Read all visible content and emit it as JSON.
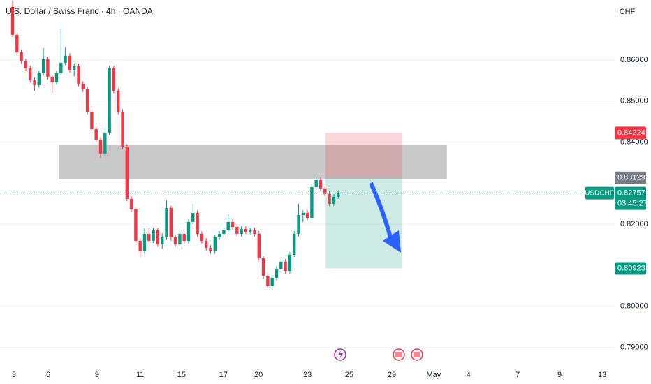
{
  "chart_data": {
    "type": "candlestick",
    "title": "U.S. Dollar / Swiss Franc · 4h · OANDA",
    "currency": "CHF",
    "symbol": "USDCHF",
    "countdown": "03:45:27",
    "up_color": "#089981",
    "down_color": "#f23645",
    "open": [
      0.87293,
      0.86612,
      0.86187,
      0.85966,
      0.85796,
      0.85507,
      0.85388,
      0.85677,
      0.86017,
      0.85592,
      0.85456,
      0.85677,
      0.85932,
      0.86102,
      0.85762,
      0.85847,
      0.85422,
      0.85286,
      0.84741,
      0.84316,
      0.84061,
      0.83721,
      0.84231,
      0.85796,
      0.85252,
      0.84741,
      0.83891,
      0.82616,
      0.82361,
      0.81595,
      0.8134,
      0.81765,
      0.81595,
      0.8185,
      0.8151,
      0.8168,
      0.82395,
      0.8168,
      0.8151,
      0.81765,
      0.81595,
      0.82054,
      0.82275,
      0.81765,
      0.81595,
      0.81425,
      0.8134,
      0.8168,
      0.81765,
      0.8185,
      0.82054,
      0.81935,
      0.81765,
      0.81884,
      0.81816,
      0.8185,
      0.81765,
      0.8117,
      0.80745,
      0.8049,
      0.80694,
      0.80915,
      0.81085,
      0.80864,
      0.81255,
      0.81765,
      0.82224,
      0.82275,
      0.82156,
      0.82905,
      0.83075,
      0.82871,
      0.82735,
      0.82497,
      0.82667
    ],
    "high": [
      0.8745,
      0.8667,
      0.8625,
      0.8603,
      0.8586,
      0.8557,
      0.8574,
      0.8629,
      0.8608,
      0.8565,
      0.8574,
      0.8677,
      0.863,
      0.8616,
      0.8591,
      0.8591,
      0.8548,
      0.8535,
      0.848,
      0.8438,
      0.8412,
      0.8429,
      0.8586,
      0.8586,
      0.8531,
      0.848,
      0.8395,
      0.8268,
      0.8242,
      0.8166,
      0.819,
      0.819,
      0.8191,
      0.8191,
      0.8178,
      0.8258,
      0.8245,
      0.8174,
      0.8183,
      0.8183,
      0.8212,
      0.825,
      0.8234,
      0.8183,
      0.8166,
      0.8149,
      0.8174,
      0.8183,
      0.8191,
      0.8224,
      0.8212,
      0.82,
      0.8195,
      0.8195,
      0.8191,
      0.8191,
      0.8183,
      0.8123,
      0.808,
      0.8076,
      0.8098,
      0.8115,
      0.8115,
      0.8132,
      0.8183,
      0.825,
      0.8234,
      0.8234,
      0.8297,
      0.8316,
      0.8314,
      0.8294,
      0.828,
      0.8273,
      0.828
    ],
    "low": [
      0.8655,
      0.8613,
      0.8591,
      0.8574,
      0.8545,
      0.8525,
      0.8533,
      0.8562,
      0.8553,
      0.852,
      0.854,
      0.8562,
      0.8587,
      0.857,
      0.856,
      0.8536,
      0.8522,
      0.8468,
      0.8426,
      0.84,
      0.836,
      0.8366,
      0.8417,
      0.8519,
      0.8468,
      0.8383,
      0.8256,
      0.823,
      0.815,
      0.812,
      0.8128,
      0.815,
      0.8154,
      0.8145,
      0.814,
      0.8162,
      0.816,
      0.8145,
      0.8145,
      0.8153,
      0.8153,
      0.82,
      0.817,
      0.8153,
      0.8136,
      0.8128,
      0.8128,
      0.8162,
      0.817,
      0.8179,
      0.8187,
      0.817,
      0.817,
      0.8176,
      0.8176,
      0.817,
      0.8111,
      0.8068,
      0.8045,
      0.8045,
      0.8063,
      0.8085,
      0.808,
      0.808,
      0.812,
      0.817,
      0.8205,
      0.821,
      0.821,
      0.8284,
      0.8281,
      0.8267,
      0.8244,
      0.8244,
      0.8262
    ],
    "close": [
      0.86612,
      0.86187,
      0.85966,
      0.85796,
      0.85507,
      0.85388,
      0.85677,
      0.86017,
      0.85592,
      0.85456,
      0.85677,
      0.85932,
      0.86102,
      0.85762,
      0.85847,
      0.85422,
      0.85286,
      0.84741,
      0.84316,
      0.84061,
      0.83721,
      0.84231,
      0.85796,
      0.85252,
      0.84741,
      0.83891,
      0.82616,
      0.82361,
      0.81595,
      0.8134,
      0.81765,
      0.81595,
      0.8185,
      0.8151,
      0.8168,
      0.82395,
      0.8168,
      0.8151,
      0.81765,
      0.81595,
      0.82054,
      0.82275,
      0.81765,
      0.81595,
      0.81425,
      0.8134,
      0.8168,
      0.81765,
      0.8185,
      0.82054,
      0.81935,
      0.81765,
      0.81884,
      0.81816,
      0.8185,
      0.81765,
      0.8117,
      0.80745,
      0.8049,
      0.80694,
      0.80915,
      0.81085,
      0.80864,
      0.81255,
      0.81765,
      0.82224,
      0.82275,
      0.82156,
      0.82905,
      0.83075,
      0.82871,
      0.82735,
      0.82497,
      0.82667,
      0.82757
    ],
    "xlim": [
      -2.86,
      136.83
    ],
    "xticks": [
      {
        "value": 0.3,
        "label": "3"
      },
      {
        "value": 8.1,
        "label": "6"
      },
      {
        "value": 19.2,
        "label": "9"
      },
      {
        "value": 29.0,
        "label": "11"
      },
      {
        "value": 38.4,
        "label": "15"
      },
      {
        "value": 47.9,
        "label": "17"
      },
      {
        "value": 55.9,
        "label": "20"
      },
      {
        "value": 67.0,
        "label": "23"
      },
      {
        "value": 76.5,
        "label": "25"
      },
      {
        "value": 86.2,
        "label": "29"
      },
      {
        "value": 95.7,
        "label": "May"
      },
      {
        "value": 103.6,
        "label": "4"
      },
      {
        "value": 114.8,
        "label": "7"
      },
      {
        "value": 124.3,
        "label": "9"
      },
      {
        "value": 134.0,
        "label": "13"
      }
    ],
    "ylim": [
      0.7862,
      0.8746
    ],
    "yticks": [
      {
        "value": 0.86,
        "label": "0.86000"
      },
      {
        "value": 0.85,
        "label": "0.85000"
      },
      {
        "value": 0.84,
        "label": "0.84000"
      },
      {
        "value": 0.82,
        "label": "0.82000"
      },
      {
        "value": 0.8,
        "label": "0.80000"
      },
      {
        "value": 0.79,
        "label": "0.79000"
      }
    ],
    "grid": true,
    "zone": {
      "top": 0.83925,
      "bottom": 0.83092,
      "from": 10.6,
      "to": 98.7,
      "color": "#b2b2b2"
    },
    "position": {
      "stop": 0.84224,
      "entry": 0.83129,
      "target": 0.80923,
      "from": 71.1,
      "to": 88.6,
      "stop_color": "#f23645",
      "entry_color": "#787b86",
      "target_color": "#089981"
    }
  }
}
